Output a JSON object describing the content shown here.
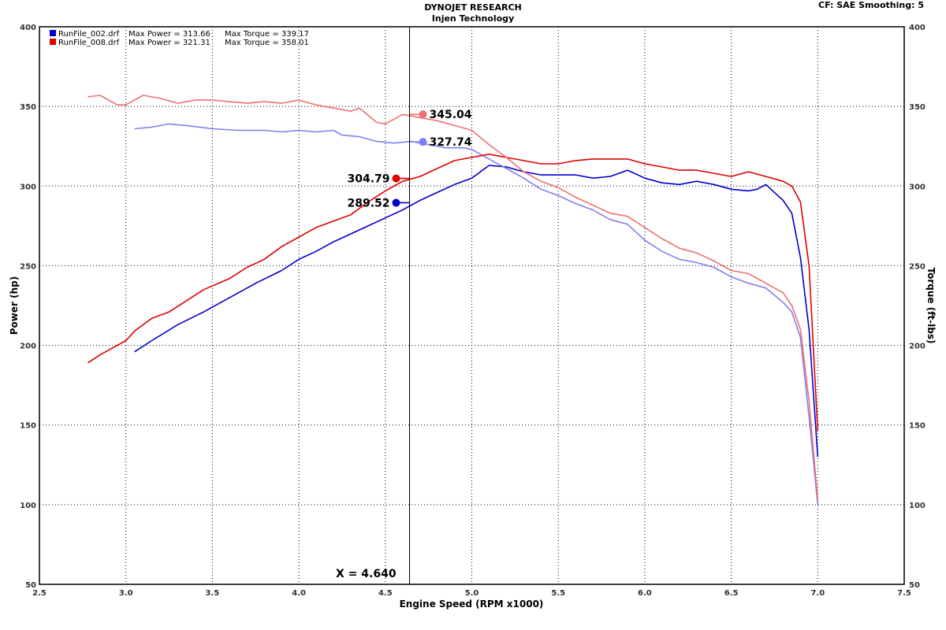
{
  "header": {
    "title": "DYNOJET RESEARCH",
    "subtitle": "Injen Technology",
    "corrections": "CF: SAE  Smoothing: 5"
  },
  "legend": [
    {
      "file": "RunFile_002.drf",
      "power_text": "Max Power = 313.66",
      "torque_text": "Max Torque = 339.17",
      "color": "#0000cc"
    },
    {
      "file": "RunFile_008.drf",
      "power_text": "Max Power = 321.31",
      "torque_text": "Max Torque = 358.01",
      "color": "#e00000"
    }
  ],
  "cursor": {
    "label": "X = 4.640",
    "x": 4.64
  },
  "chart_data": {
    "type": "line",
    "xlabel": "Engine Speed (RPM x1000)",
    "ylabel": "Power (hp)",
    "y2label": "Torque (ft-lbs)",
    "xlim": [
      2.5,
      7.5
    ],
    "ylim": [
      50,
      400
    ],
    "y2lim": [
      50,
      400
    ],
    "xticks": [
      "2.5",
      "3.0",
      "3.5",
      "4.0",
      "4.5",
      "5.0",
      "5.5",
      "6.0",
      "6.5",
      "7.0",
      "7.5"
    ],
    "yticks": [
      "50",
      "100",
      "150",
      "200",
      "250",
      "300",
      "350",
      "400"
    ],
    "y2ticks": [
      "50",
      "100",
      "150",
      "200",
      "250",
      "300",
      "350",
      "400"
    ],
    "grid": true,
    "colors": {
      "run002_power": "#0000cc",
      "run002_torque": "#8080ee",
      "run008_power": "#e00000",
      "run008_torque": "#ee7070"
    },
    "series": [
      {
        "name": "RunFile_002.drf Power",
        "key": "run002_power",
        "marker_value": "289.52",
        "points": [
          [
            3.05,
            196
          ],
          [
            3.15,
            203
          ],
          [
            3.3,
            213
          ],
          [
            3.45,
            221
          ],
          [
            3.6,
            230
          ],
          [
            3.75,
            239
          ],
          [
            3.9,
            247
          ],
          [
            4.0,
            254
          ],
          [
            4.1,
            259
          ],
          [
            4.2,
            265
          ],
          [
            4.3,
            270
          ],
          [
            4.4,
            275
          ],
          [
            4.5,
            280
          ],
          [
            4.6,
            285
          ],
          [
            4.7,
            291
          ],
          [
            4.8,
            296
          ],
          [
            4.9,
            301
          ],
          [
            5.0,
            305
          ],
          [
            5.1,
            313
          ],
          [
            5.2,
            312
          ],
          [
            5.3,
            309
          ],
          [
            5.4,
            307
          ],
          [
            5.5,
            307
          ],
          [
            5.6,
            307
          ],
          [
            5.7,
            305
          ],
          [
            5.8,
            306
          ],
          [
            5.9,
            310
          ],
          [
            6.0,
            305
          ],
          [
            6.1,
            302
          ],
          [
            6.2,
            301
          ],
          [
            6.3,
            303
          ],
          [
            6.4,
            301
          ],
          [
            6.5,
            298
          ],
          [
            6.6,
            297
          ],
          [
            6.65,
            298
          ],
          [
            6.7,
            301
          ],
          [
            6.75,
            296
          ],
          [
            6.8,
            291
          ],
          [
            6.85,
            283
          ],
          [
            6.9,
            255
          ],
          [
            6.95,
            210
          ],
          [
            7.0,
            130
          ]
        ]
      },
      {
        "name": "RunFile_002.drf Torque",
        "key": "run002_torque",
        "marker_value": "327.74",
        "points": [
          [
            3.05,
            336
          ],
          [
            3.15,
            337
          ],
          [
            3.25,
            339
          ],
          [
            3.35,
            338
          ],
          [
            3.5,
            336
          ],
          [
            3.65,
            335
          ],
          [
            3.8,
            335
          ],
          [
            3.9,
            334
          ],
          [
            4.0,
            335
          ],
          [
            4.1,
            334
          ],
          [
            4.2,
            335
          ],
          [
            4.25,
            332
          ],
          [
            4.35,
            331
          ],
          [
            4.45,
            328
          ],
          [
            4.55,
            327
          ],
          [
            4.65,
            328
          ],
          [
            4.75,
            326
          ],
          [
            4.85,
            324
          ],
          [
            4.95,
            324
          ],
          [
            5.0,
            323
          ],
          [
            5.1,
            317
          ],
          [
            5.2,
            311
          ],
          [
            5.3,
            305
          ],
          [
            5.4,
            298
          ],
          [
            5.5,
            294
          ],
          [
            5.6,
            289
          ],
          [
            5.7,
            285
          ],
          [
            5.8,
            279
          ],
          [
            5.9,
            276
          ],
          [
            6.0,
            266
          ],
          [
            6.1,
            259
          ],
          [
            6.2,
            254
          ],
          [
            6.3,
            252
          ],
          [
            6.4,
            249
          ],
          [
            6.5,
            243
          ],
          [
            6.6,
            239
          ],
          [
            6.7,
            236
          ],
          [
            6.8,
            227
          ],
          [
            6.85,
            221
          ],
          [
            6.9,
            205
          ],
          [
            6.95,
            155
          ],
          [
            7.0,
            100
          ]
        ]
      },
      {
        "name": "RunFile_008.drf Power",
        "key": "run008_power",
        "marker_value": "304.79",
        "points": [
          [
            2.78,
            189
          ],
          [
            2.85,
            194
          ],
          [
            2.95,
            200
          ],
          [
            3.0,
            203
          ],
          [
            3.05,
            209
          ],
          [
            3.15,
            217
          ],
          [
            3.25,
            221
          ],
          [
            3.35,
            228
          ],
          [
            3.45,
            235
          ],
          [
            3.6,
            242
          ],
          [
            3.7,
            249
          ],
          [
            3.8,
            254
          ],
          [
            3.9,
            262
          ],
          [
            4.0,
            268
          ],
          [
            4.1,
            274
          ],
          [
            4.2,
            278
          ],
          [
            4.3,
            282
          ],
          [
            4.4,
            290
          ],
          [
            4.5,
            297
          ],
          [
            4.6,
            303
          ],
          [
            4.7,
            306
          ],
          [
            4.8,
            311
          ],
          [
            4.9,
            316
          ],
          [
            5.0,
            318
          ],
          [
            5.1,
            320
          ],
          [
            5.2,
            318
          ],
          [
            5.3,
            316
          ],
          [
            5.4,
            314
          ],
          [
            5.5,
            314
          ],
          [
            5.6,
            316
          ],
          [
            5.7,
            317
          ],
          [
            5.8,
            317
          ],
          [
            5.9,
            317
          ],
          [
            6.0,
            314
          ],
          [
            6.1,
            312
          ],
          [
            6.2,
            310
          ],
          [
            6.3,
            310
          ],
          [
            6.4,
            308
          ],
          [
            6.5,
            306
          ],
          [
            6.6,
            309
          ],
          [
            6.7,
            306
          ],
          [
            6.8,
            303
          ],
          [
            6.85,
            300
          ],
          [
            6.9,
            290
          ],
          [
            6.95,
            250
          ],
          [
            7.0,
            146
          ]
        ]
      },
      {
        "name": "RunFile_008.drf Torque",
        "key": "run008_torque",
        "marker_value": "345.04",
        "points": [
          [
            2.78,
            356
          ],
          [
            2.85,
            357
          ],
          [
            2.95,
            351
          ],
          [
            3.0,
            351
          ],
          [
            3.1,
            357
          ],
          [
            3.2,
            355
          ],
          [
            3.3,
            352
          ],
          [
            3.4,
            354
          ],
          [
            3.5,
            354
          ],
          [
            3.6,
            353
          ],
          [
            3.7,
            352
          ],
          [
            3.8,
            353
          ],
          [
            3.9,
            352
          ],
          [
            4.0,
            354
          ],
          [
            4.1,
            351
          ],
          [
            4.2,
            349
          ],
          [
            4.3,
            347
          ],
          [
            4.35,
            349
          ],
          [
            4.45,
            340
          ],
          [
            4.5,
            339
          ],
          [
            4.6,
            345
          ],
          [
            4.7,
            343
          ],
          [
            4.8,
            341
          ],
          [
            4.9,
            338
          ],
          [
            5.0,
            335
          ],
          [
            5.1,
            326
          ],
          [
            5.2,
            318
          ],
          [
            5.3,
            309
          ],
          [
            5.4,
            303
          ],
          [
            5.5,
            299
          ],
          [
            5.6,
            293
          ],
          [
            5.7,
            288
          ],
          [
            5.8,
            283
          ],
          [
            5.9,
            281
          ],
          [
            6.0,
            274
          ],
          [
            6.1,
            267
          ],
          [
            6.2,
            261
          ],
          [
            6.3,
            258
          ],
          [
            6.4,
            253
          ],
          [
            6.5,
            247
          ],
          [
            6.6,
            245
          ],
          [
            6.7,
            239
          ],
          [
            6.8,
            233
          ],
          [
            6.85,
            225
          ],
          [
            6.9,
            210
          ],
          [
            6.95,
            165
          ],
          [
            7.0,
            103
          ]
        ]
      }
    ]
  }
}
